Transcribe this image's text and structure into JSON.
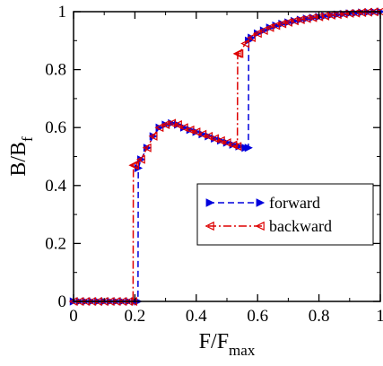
{
  "chart_data": {
    "type": "line",
    "xlabel": "F/F",
    "xlabel_sub": "max",
    "ylabel": "B/B",
    "ylabel_sub": "f",
    "xlim": [
      0,
      1
    ],
    "ylim": [
      0,
      1
    ],
    "xticks": [
      0,
      0.2,
      0.4,
      0.6,
      0.8,
      1
    ],
    "xtick_labels": [
      "0",
      "0.2",
      "0.4",
      "0.6",
      "0.8",
      "1"
    ],
    "yticks": [
      0,
      0.2,
      0.4,
      0.6,
      0.8,
      1
    ],
    "ytick_labels": [
      "0",
      "0.2",
      "0.4",
      "0.6",
      "0.8",
      "1"
    ],
    "grid": false,
    "legend_position": "center-right",
    "series": [
      {
        "name": "forward",
        "color": "#0000dd",
        "line_style": "dashed",
        "marker": "right-triangle-filled",
        "x": [
          0,
          0.02,
          0.04,
          0.06,
          0.08,
          0.1,
          0.12,
          0.14,
          0.16,
          0.18,
          0.2,
          0.21,
          0.211,
          0.22,
          0.24,
          0.26,
          0.28,
          0.3,
          0.32,
          0.34,
          0.36,
          0.38,
          0.4,
          0.42,
          0.44,
          0.46,
          0.48,
          0.5,
          0.52,
          0.54,
          0.56,
          0.57,
          0.571,
          0.58,
          0.6,
          0.62,
          0.64,
          0.66,
          0.68,
          0.7,
          0.72,
          0.74,
          0.76,
          0.78,
          0.8,
          0.82,
          0.84,
          0.86,
          0.88,
          0.9,
          0.92,
          0.94,
          0.96,
          0.98,
          1.0
        ],
        "y": [
          0,
          0,
          0,
          0,
          0,
          0,
          0,
          0,
          0,
          0,
          0,
          0,
          0.46,
          0.49,
          0.53,
          0.57,
          0.6,
          0.61,
          0.615,
          0.61,
          0.6,
          0.592,
          0.585,
          0.577,
          0.57,
          0.562,
          0.555,
          0.548,
          0.541,
          0.535,
          0.53,
          0.53,
          0.9,
          0.91,
          0.925,
          0.935,
          0.945,
          0.952,
          0.958,
          0.963,
          0.968,
          0.972,
          0.976,
          0.979,
          0.982,
          0.985,
          0.988,
          0.99,
          0.992,
          0.994,
          0.995,
          0.997,
          0.998,
          0.999,
          1.0
        ]
      },
      {
        "name": "backward",
        "color": "#dd0000",
        "line_style": "dash-dot",
        "marker": "left-triangle-open",
        "x": [
          1.0,
          0.98,
          0.96,
          0.94,
          0.92,
          0.9,
          0.88,
          0.86,
          0.84,
          0.82,
          0.8,
          0.78,
          0.76,
          0.74,
          0.72,
          0.7,
          0.68,
          0.66,
          0.64,
          0.62,
          0.6,
          0.58,
          0.56,
          0.54,
          0.535,
          0.534,
          0.52,
          0.5,
          0.48,
          0.46,
          0.44,
          0.42,
          0.4,
          0.38,
          0.36,
          0.34,
          0.32,
          0.3,
          0.28,
          0.26,
          0.24,
          0.22,
          0.2,
          0.195,
          0.194,
          0.18,
          0.16,
          0.14,
          0.12,
          0.1,
          0.08,
          0.06,
          0.04,
          0.02,
          0
        ],
        "y": [
          1.0,
          0.999,
          0.998,
          0.997,
          0.995,
          0.994,
          0.992,
          0.99,
          0.988,
          0.985,
          0.982,
          0.979,
          0.976,
          0.972,
          0.968,
          0.963,
          0.958,
          0.952,
          0.945,
          0.935,
          0.925,
          0.91,
          0.89,
          0.855,
          0.855,
          0.535,
          0.54,
          0.548,
          0.555,
          0.562,
          0.57,
          0.577,
          0.585,
          0.592,
          0.6,
          0.61,
          0.615,
          0.61,
          0.6,
          0.57,
          0.53,
          0.49,
          0.47,
          0.47,
          0,
          0,
          0,
          0,
          0,
          0,
          0,
          0,
          0,
          0,
          0
        ]
      }
    ]
  }
}
